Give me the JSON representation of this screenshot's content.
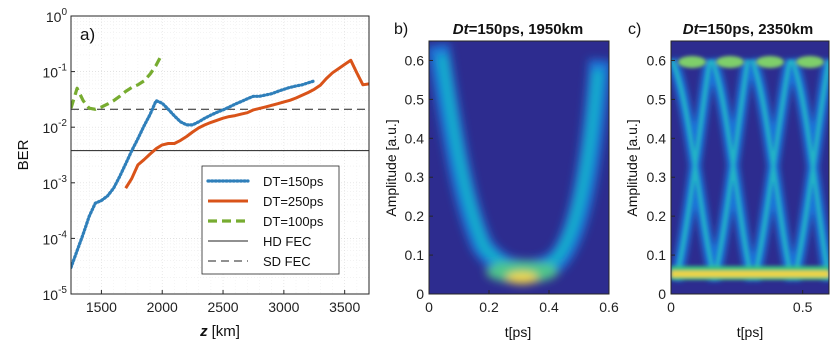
{
  "chart_data": [
    {
      "panel_label": "a)",
      "type": "line",
      "ylabel": "BER",
      "xlabel_italic": "z",
      "xlabel_unit": "[km]",
      "xlim": [
        1250,
        3700
      ],
      "ylim": [
        1e-05,
        1
      ],
      "yscale": "log",
      "grid": true,
      "x_ticks": [
        "1500",
        "2000",
        "2500",
        "3000",
        "3500"
      ],
      "x_tick_values": [
        1500,
        2000,
        2500,
        3000,
        3500
      ],
      "y_ticks": [
        {
          "base": "10",
          "exp": "0",
          "value": 1
        },
        {
          "base": "10",
          "exp": "-1",
          "value": 0.1
        },
        {
          "base": "10",
          "exp": "-2",
          "value": 0.01
        },
        {
          "base": "10",
          "exp": "-3",
          "value": 0.001
        },
        {
          "base": "10",
          "exp": "-4",
          "value": 0.0001
        },
        {
          "base": "10",
          "exp": "-5",
          "value": 1e-05
        }
      ],
      "legend_position": "bottom-right",
      "series": [
        {
          "name": "DT=150ps",
          "color": "#2f7fba",
          "style": "dotted",
          "x": [
            1250,
            1300,
            1350,
            1400,
            1450,
            1500,
            1550,
            1600,
            1650,
            1700,
            1750,
            1800,
            1850,
            1900,
            1950,
            2000,
            2050,
            2100,
            2150,
            2200,
            2250,
            2300,
            2350,
            2400,
            2450,
            2500,
            2550,
            2600,
            2650,
            2700,
            2750,
            2800,
            2850,
            2900,
            2950,
            3000,
            3050,
            3100,
            3150,
            3200,
            3250
          ],
          "y": [
            3e-05,
            6e-05,
            0.00012,
            0.00025,
            0.00043,
            0.00048,
            0.00058,
            0.0008,
            0.0013,
            0.0022,
            0.0038,
            0.0062,
            0.0105,
            0.017,
            0.03,
            0.027,
            0.021,
            0.016,
            0.0125,
            0.011,
            0.011,
            0.0125,
            0.0145,
            0.0165,
            0.0185,
            0.0205,
            0.023,
            0.026,
            0.029,
            0.0325,
            0.036,
            0.036,
            0.038,
            0.04,
            0.044,
            0.048,
            0.052,
            0.055,
            0.058,
            0.063,
            0.068
          ]
        },
        {
          "name": "DT=250ps",
          "color": "#d95319",
          "style": "solid",
          "x": [
            1700,
            1750,
            1800,
            1850,
            1900,
            1950,
            2000,
            2050,
            2100,
            2150,
            2200,
            2250,
            2300,
            2350,
            2400,
            2450,
            2500,
            2550,
            2600,
            2650,
            2700,
            2750,
            2800,
            2850,
            2900,
            2950,
            3000,
            3050,
            3100,
            3150,
            3200,
            3250,
            3300,
            3350,
            3400,
            3450,
            3500,
            3550,
            3600,
            3650,
            3700
          ],
          "y": [
            0.0008,
            0.0012,
            0.0021,
            0.0026,
            0.0033,
            0.0041,
            0.0048,
            0.0051,
            0.0051,
            0.0058,
            0.0068,
            0.0082,
            0.0097,
            0.011,
            0.0122,
            0.0133,
            0.0145,
            0.0155,
            0.0162,
            0.0172,
            0.0182,
            0.0205,
            0.0218,
            0.0232,
            0.0248,
            0.0265,
            0.0285,
            0.0305,
            0.0335,
            0.0375,
            0.042,
            0.048,
            0.057,
            0.075,
            0.095,
            0.113,
            0.135,
            0.16,
            0.095,
            0.058,
            0.06
          ]
        },
        {
          "name": "DT=100ps",
          "color": "#77ac30",
          "style": "dashed",
          "x": [
            1250,
            1300,
            1350,
            1400,
            1450,
            1500,
            1550,
            1600,
            1650,
            1700,
            1750,
            1800,
            1850,
            1900,
            1950,
            2000
          ],
          "y": [
            0.022,
            0.05,
            0.03,
            0.022,
            0.021,
            0.023,
            0.026,
            0.03,
            0.036,
            0.044,
            0.052,
            0.058,
            0.068,
            0.09,
            0.13,
            0.21
          ]
        },
        {
          "name": "HD FEC",
          "color": "#222222",
          "style": "thin",
          "x": [
            1250,
            3700
          ],
          "y": [
            0.0038,
            0.0038
          ]
        },
        {
          "name": "SD FEC",
          "color": "#222222",
          "style": "longdash",
          "x": [
            1250,
            3700
          ],
          "y": [
            0.021,
            0.021
          ]
        }
      ]
    },
    {
      "panel_label": "b)",
      "type": "heatmap",
      "title_italic": "Dt",
      "title_rest": "=150ps, 1950km",
      "xlabel": "t[ps]",
      "ylabel": "Amplitude [a.u.]",
      "xlim": [
        0,
        0.6
      ],
      "ylim": [
        0,
        0.65
      ],
      "x_ticks": [
        "0",
        "0.2",
        "0.4",
        "0.6"
      ],
      "x_tick_values": [
        0,
        0.2,
        0.4,
        0.6
      ],
      "y_ticks": [
        "0",
        "0.1",
        "0.2",
        "0.3",
        "0.4",
        "0.5",
        "0.6"
      ],
      "y_tick_values": [
        0,
        0.1,
        0.2,
        0.3,
        0.4,
        0.5,
        0.6
      ],
      "background_color": "#2d2c8f"
    },
    {
      "panel_label": "c)",
      "type": "heatmap",
      "title_italic": "Dt",
      "title_rest": "=150ps, 2350km",
      "xlabel": "t[ps]",
      "ylabel": "Amplitude [a.u.]",
      "xlim": [
        0,
        0.6
      ],
      "ylim": [
        0,
        0.65
      ],
      "x_ticks": [
        "0",
        "0.5"
      ],
      "x_tick_values": [
        0,
        0.5
      ],
      "y_ticks": [
        "0",
        "0.1",
        "0.2",
        "0.3",
        "0.4",
        "0.5",
        "0.6"
      ],
      "y_tick_values": [
        0,
        0.1,
        0.2,
        0.3,
        0.4,
        0.5,
        0.6
      ],
      "background_color": "#2d2c8f"
    }
  ]
}
